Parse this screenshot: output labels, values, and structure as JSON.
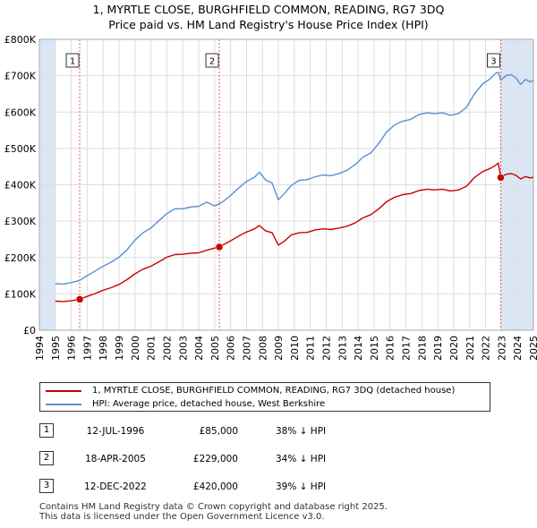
{
  "title": {
    "line1": "1, MYRTLE CLOSE, BURGHFIELD COMMON, READING, RG7 3DQ",
    "line2": "Price paid vs. HM Land Registry's House Price Index (HPI)"
  },
  "colors": {
    "property_line": "#cc0000",
    "hpi_line": "#5b8fd0",
    "shade": "#dbe6f5",
    "grid": "#dddddd",
    "vline": "#e06060"
  },
  "chart_data": {
    "type": "line",
    "title": "1, MYRTLE CLOSE, BURGHFIELD COMMON, READING, RG7 3DQ — Price paid vs. HM Land Registry's House Price Index (HPI)",
    "xlabel": "",
    "ylabel": "",
    "xlim": [
      1994.0,
      2025.0
    ],
    "ylim": [
      0,
      800000
    ],
    "y_ticks": [
      0,
      100000,
      200000,
      300000,
      400000,
      500000,
      600000,
      700000,
      800000
    ],
    "y_tick_labels": [
      "£0",
      "£100K",
      "£200K",
      "£300K",
      "£400K",
      "£500K",
      "£600K",
      "£700K",
      "£800K"
    ],
    "x_tick_labels": [
      "1994",
      "1995",
      "1996",
      "1997",
      "1998",
      "1999",
      "2000",
      "2001",
      "2002",
      "2003",
      "2004",
      "2005",
      "2006",
      "2007",
      "2008",
      "2009",
      "2010",
      "2011",
      "2012",
      "2013",
      "2014",
      "2015",
      "2016",
      "2017",
      "2018",
      "2019",
      "2020",
      "2021",
      "2022",
      "2023",
      "2024",
      "2025"
    ],
    "shaded_regions": [
      [
        1994.0,
        1995.0
      ],
      [
        2022.95,
        2025.0
      ]
    ],
    "series": [
      {
        "name": "1, MYRTLE CLOSE, BURGHFIELD COMMON, READING, RG7 3DQ (detached house)",
        "color": "#cc0000",
        "x": [
          1995.0,
          1995.5,
          1996.0,
          1996.53,
          1997.0,
          1997.5,
          1998.0,
          1998.5,
          1999.0,
          1999.5,
          2000.0,
          2000.5,
          2001.0,
          2001.5,
          2002.0,
          2002.5,
          2003.0,
          2003.5,
          2004.0,
          2004.5,
          2005.0,
          2005.29,
          2005.5,
          2006.0,
          2006.5,
          2007.0,
          2007.5,
          2007.8,
          2008.2,
          2008.6,
          2009.0,
          2009.4,
          2009.8,
          2010.3,
          2010.8,
          2011.3,
          2011.8,
          2012.3,
          2012.8,
          2013.3,
          2013.8,
          2014.3,
          2014.8,
          2015.3,
          2015.8,
          2016.3,
          2016.8,
          2017.3,
          2017.8,
          2018.3,
          2018.8,
          2019.3,
          2019.8,
          2020.3,
          2020.8,
          2021.3,
          2021.8,
          2022.3,
          2022.6,
          2022.8,
          2022.95,
          2023.3,
          2023.6,
          2023.9,
          2024.2,
          2024.5,
          2024.8,
          2025.0
        ],
        "y": [
          80000,
          79000,
          81000,
          85000,
          93000,
          101000,
          110000,
          117000,
          126000,
          139000,
          155000,
          168000,
          176000,
          188000,
          201000,
          208000,
          209000,
          212000,
          213000,
          220000,
          226000,
          229000,
          234000,
          246000,
          259000,
          270000,
          279000,
          288000,
          273000,
          268000,
          234000,
          246000,
          262000,
          268000,
          269000,
          276000,
          279000,
          277000,
          281000,
          286000,
          295000,
          309000,
          318000,
          334000,
          354000,
          366000,
          373000,
          376000,
          384000,
          388000,
          386000,
          388000,
          383000,
          386000,
          396000,
          420000,
          436000,
          445000,
          453000,
          460000,
          420000,
          429000,
          431000,
          426000,
          416000,
          423000,
          419000,
          421000
        ]
      },
      {
        "name": "HPI: Average price, detached house, West Berkshire",
        "color": "#5b8fd0",
        "x": [
          1995.0,
          1995.5,
          1996.0,
          1996.53,
          1997.0,
          1997.5,
          1998.0,
          1998.5,
          1999.0,
          1999.5,
          2000.0,
          2000.5,
          2001.0,
          2001.5,
          2002.0,
          2002.5,
          2003.0,
          2003.5,
          2004.0,
          2004.5,
          2005.0,
          2005.29,
          2005.5,
          2006.0,
          2006.5,
          2007.0,
          2007.5,
          2007.8,
          2008.2,
          2008.6,
          2009.0,
          2009.4,
          2009.8,
          2010.3,
          2010.8,
          2011.3,
          2011.8,
          2012.3,
          2012.8,
          2013.3,
          2013.8,
          2014.3,
          2014.8,
          2015.3,
          2015.8,
          2016.3,
          2016.8,
          2017.3,
          2017.8,
          2018.3,
          2018.8,
          2019.3,
          2019.8,
          2020.3,
          2020.8,
          2021.3,
          2021.8,
          2022.3,
          2022.6,
          2022.8,
          2022.95,
          2023.3,
          2023.6,
          2023.9,
          2024.2,
          2024.5,
          2024.8,
          2025.0
        ],
        "y": [
          128000,
          127000,
          131000,
          137000,
          150000,
          163000,
          176000,
          187000,
          201000,
          221000,
          248000,
          268000,
          281000,
          301000,
          321000,
          334000,
          334000,
          339000,
          341000,
          352000,
          342000,
          348000,
          353000,
          371000,
          391000,
          409000,
          421000,
          435000,
          413000,
          405000,
          359000,
          377000,
          398000,
          412000,
          414000,
          422000,
          427000,
          425000,
          431000,
          440000,
          455000,
          476000,
          488000,
          514000,
          546000,
          565000,
          575000,
          580000,
          593000,
          598000,
          596000,
          598000,
          591000,
          596000,
          613000,
          650000,
          677000,
          692000,
          706000,
          710000,
          688000,
          701000,
          703000,
          694000,
          676000,
          690000,
          683000,
          687000
        ]
      }
    ],
    "sale_points": [
      {
        "label": "1",
        "x": 1996.53,
        "y": 85000
      },
      {
        "label": "2",
        "x": 2005.29,
        "y": 229000
      },
      {
        "label": "3",
        "x": 2022.95,
        "y": 420000
      }
    ]
  },
  "legend": {
    "property_label": "1, MYRTLE CLOSE, BURGHFIELD COMMON, READING, RG7 3DQ (detached house)",
    "hpi_label": "HPI: Average price, detached house, West Berkshire"
  },
  "sales": [
    {
      "num": "1",
      "date": "12-JUL-1996",
      "price": "£85,000",
      "hpi": "38% ↓ HPI"
    },
    {
      "num": "2",
      "date": "18-APR-2005",
      "price": "£229,000",
      "hpi": "34% ↓ HPI"
    },
    {
      "num": "3",
      "date": "12-DEC-2022",
      "price": "£420,000",
      "hpi": "39% ↓ HPI"
    }
  ],
  "footer": {
    "line1": "Contains HM Land Registry data © Crown copyright and database right 2025.",
    "line2": "This data is licensed under the Open Government Licence v3.0."
  }
}
